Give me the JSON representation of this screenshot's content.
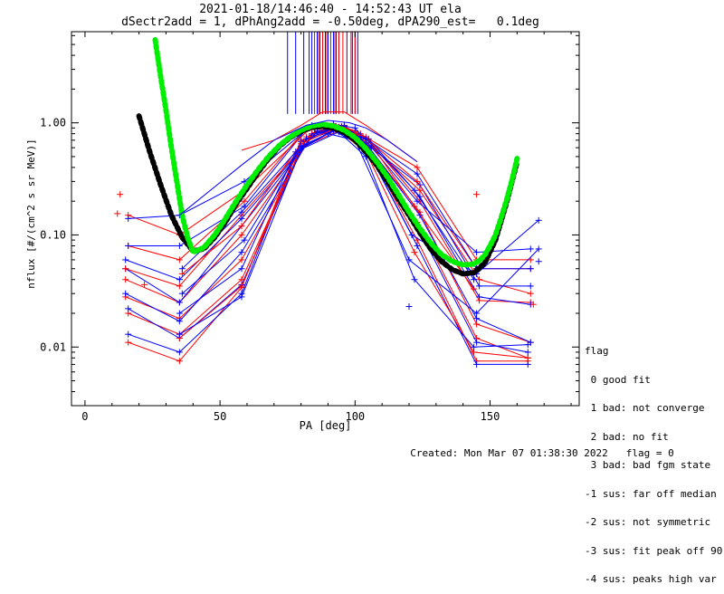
{
  "title_line1": "2021-01-18/14:46:40 - 14:52:43 UT ela",
  "title_line2": "dSectr2add = 1, dPhAng2add = -0.50deg, dPA290_est=   0.1deg",
  "legend": {
    "heading": "flag",
    "items": [
      " 0 good fit",
      " 1 bad: not converge",
      " 2 bad: no fit",
      " 3 bad: bad fgm state",
      "-1 sus: far off median",
      "-2 sus: not symmetric",
      "-3 sus: fit peak off 90",
      "-4 sus: peaks high var"
    ]
  },
  "footer": {
    "created": "Created: Mon Mar 07 01:38:30 2022",
    "flag": "flag = 0"
  },
  "colors": {
    "red": "#ff0000",
    "blue": "#0000ff",
    "green": "#00ee00",
    "black": "#000000"
  },
  "chart_data": {
    "type": "line",
    "xlabel": "PA [deg]",
    "ylabel": "nflux [#/(cm^2 s sr MeV)]",
    "xlim": [
      -5,
      183
    ],
    "ylim": [
      0.003,
      6.5
    ],
    "yscale": "log",
    "xticks": [
      0,
      50,
      100,
      150
    ],
    "yticks": [
      0.01,
      0.1,
      1.0
    ],
    "ytick_labels": [
      "0.01",
      "0.10",
      "1.00"
    ],
    "fits": [
      {
        "name": "black fit",
        "color": "black",
        "x": [
          20,
          24,
          28,
          32,
          36,
          40,
          44,
          48,
          52,
          56,
          60,
          64,
          68,
          72,
          76,
          80,
          84,
          88,
          92,
          96,
          100,
          104,
          108,
          112,
          116,
          120,
          124,
          128,
          132,
          136,
          140,
          144,
          148,
          152,
          156,
          160
        ],
        "y": [
          1.15,
          0.55,
          0.28,
          0.15,
          0.095,
          0.072,
          0.075,
          0.095,
          0.13,
          0.19,
          0.26,
          0.36,
          0.48,
          0.62,
          0.74,
          0.84,
          0.91,
          0.93,
          0.9,
          0.82,
          0.7,
          0.55,
          0.42,
          0.3,
          0.21,
          0.15,
          0.105,
          0.075,
          0.058,
          0.049,
          0.045,
          0.046,
          0.056,
          0.09,
          0.19,
          0.45
        ]
      },
      {
        "name": "green fit",
        "color": "green",
        "x": [
          26,
          28,
          30,
          32,
          34,
          36,
          38,
          40,
          44,
          48,
          52,
          56,
          60,
          64,
          68,
          72,
          76,
          80,
          84,
          88,
          92,
          96,
          100,
          104,
          108,
          112,
          116,
          120,
          124,
          128,
          132,
          136,
          140,
          144,
          146,
          148,
          150,
          152,
          154,
          156,
          158,
          160
        ],
        "y": [
          5.5,
          2.6,
          1.3,
          0.6,
          0.3,
          0.15,
          0.095,
          0.07,
          0.077,
          0.1,
          0.14,
          0.2,
          0.28,
          0.38,
          0.5,
          0.63,
          0.75,
          0.86,
          0.94,
          0.97,
          0.94,
          0.86,
          0.74,
          0.59,
          0.45,
          0.33,
          0.23,
          0.16,
          0.115,
          0.085,
          0.067,
          0.058,
          0.054,
          0.055,
          0.059,
          0.066,
          0.08,
          0.1,
          0.14,
          0.2,
          0.3,
          0.48
        ]
      },
      {
        "name": "red envelope",
        "color": "red",
        "line_only": true,
        "x": [
          58,
          70,
          80,
          88,
          96,
          104,
          112,
          123
        ],
        "y": [
          0.57,
          0.7,
          0.95,
          1.25,
          1.25,
          0.95,
          0.7,
          0.45
        ]
      },
      {
        "name": "blue envelope",
        "color": "blue",
        "line_only": true,
        "x": [
          35,
          58,
          70,
          82,
          90,
          98,
          104,
          112,
          123
        ],
        "y": [
          0.15,
          0.42,
          0.7,
          0.95,
          1.05,
          1.0,
          0.9,
          0.7,
          0.45
        ]
      }
    ],
    "traces": [
      {
        "color": "red",
        "x": [
          16,
          35,
          58,
          80,
          92,
          104,
          123,
          145,
          164
        ],
        "y": [
          0.011,
          0.0075,
          0.034,
          0.7,
          0.87,
          0.62,
          0.09,
          0.0075,
          0.0075
        ]
      },
      {
        "color": "blue",
        "x": [
          16,
          35,
          58,
          80,
          92,
          104,
          123,
          145,
          164
        ],
        "y": [
          0.013,
          0.009,
          0.03,
          0.68,
          0.85,
          0.6,
          0.08,
          0.007,
          0.007
        ]
      },
      {
        "color": "red",
        "x": [
          16,
          35,
          58,
          82,
          92,
          102,
          123,
          145,
          164
        ],
        "y": [
          0.02,
          0.013,
          0.04,
          0.75,
          0.9,
          0.7,
          0.13,
          0.012,
          0.008
        ]
      },
      {
        "color": "blue",
        "x": [
          16,
          35,
          58,
          82,
          92,
          102,
          123,
          145,
          164
        ],
        "y": [
          0.022,
          0.012,
          0.036,
          0.72,
          0.88,
          0.68,
          0.12,
          0.011,
          0.009
        ]
      },
      {
        "color": "red",
        "x": [
          15,
          35,
          58,
          84,
          94,
          104,
          124,
          145,
          165
        ],
        "y": [
          0.028,
          0.018,
          0.06,
          0.8,
          0.92,
          0.65,
          0.16,
          0.016,
          0.011
        ]
      },
      {
        "color": "blue",
        "x": [
          15,
          35,
          58,
          84,
          94,
          104,
          124,
          145,
          165
        ],
        "y": [
          0.03,
          0.017,
          0.07,
          0.78,
          0.9,
          0.66,
          0.15,
          0.018,
          0.011
        ]
      },
      {
        "color": "red",
        "x": [
          15,
          35,
          58,
          85,
          95,
          105,
          124,
          146,
          165
        ],
        "y": [
          0.04,
          0.025,
          0.1,
          0.82,
          0.93,
          0.7,
          0.2,
          0.026,
          0.025
        ]
      },
      {
        "color": "blue",
        "x": [
          15,
          35,
          58,
          85,
          95,
          105,
          124,
          146,
          165
        ],
        "y": [
          0.05,
          0.025,
          0.12,
          0.8,
          0.92,
          0.72,
          0.22,
          0.028,
          0.024
        ]
      },
      {
        "color": "red",
        "x": [
          15,
          35,
          58,
          86,
          96,
          106,
          124,
          146,
          165
        ],
        "y": [
          0.05,
          0.035,
          0.15,
          0.85,
          0.95,
          0.62,
          0.25,
          0.04,
          0.03
        ]
      },
      {
        "color": "blue",
        "x": [
          15,
          35,
          58,
          86,
          96,
          106,
          124,
          146,
          165
        ],
        "y": [
          0.06,
          0.04,
          0.14,
          0.84,
          0.94,
          0.6,
          0.28,
          0.035,
          0.035
        ]
      },
      {
        "color": "red",
        "x": [
          16,
          35,
          59,
          82,
          92,
          102,
          123,
          145,
          165
        ],
        "y": [
          0.08,
          0.06,
          0.2,
          0.9,
          0.98,
          0.8,
          0.3,
          0.05,
          0.05
        ]
      },
      {
        "color": "blue",
        "x": [
          16,
          35,
          59,
          82,
          92,
          102,
          123,
          145,
          165
        ],
        "y": [
          0.08,
          0.08,
          0.18,
          0.88,
          0.96,
          0.78,
          0.35,
          0.05,
          0.05
        ]
      },
      {
        "color": "red",
        "x": [
          16,
          35,
          59,
          84,
          92,
          100,
          123,
          145,
          165
        ],
        "y": [
          0.15,
          0.1,
          0.25,
          0.92,
          0.98,
          0.85,
          0.4,
          0.06,
          0.06
        ]
      },
      {
        "color": "blue",
        "x": [
          16,
          35,
          59,
          84,
          92,
          100,
          123,
          145,
          165
        ],
        "y": [
          0.14,
          0.15,
          0.3,
          0.95,
          0.97,
          0.9,
          0.2,
          0.07,
          0.075
        ]
      },
      {
        "color": "red",
        "x": [
          35,
          58,
          80,
          94,
          104,
          122,
          144,
          164
        ],
        "y": [
          0.012,
          0.035,
          0.6,
          0.85,
          0.55,
          0.07,
          0.009,
          0.008
        ]
      },
      {
        "color": "blue",
        "x": [
          35,
          58,
          80,
          94,
          104,
          122,
          144,
          164
        ],
        "y": [
          0.013,
          0.028,
          0.58,
          0.83,
          0.5,
          0.04,
          0.01,
          0.0105
        ]
      },
      {
        "color": "blue",
        "x": [
          35,
          58,
          78,
          90,
          100,
          120,
          145,
          168
        ],
        "y": [
          0.02,
          0.05,
          0.55,
          0.8,
          0.7,
          0.06,
          0.02,
          0.075
        ]
      },
      {
        "color": "blue",
        "x": [
          36,
          59,
          80,
          92,
          102,
          121,
          145,
          168
        ],
        "y": [
          0.03,
          0.09,
          0.6,
          0.86,
          0.75,
          0.1,
          0.045,
          0.135
        ]
      },
      {
        "color": "red",
        "x": [
          36,
          58,
          80,
          93,
          104,
          122,
          144
        ],
        "y": [
          0.045,
          0.12,
          0.65,
          0.9,
          0.75,
          0.18,
          0.033
        ]
      },
      {
        "color": "blue",
        "x": [
          36,
          58,
          80,
          93,
          104,
          122,
          144
        ],
        "y": [
          0.05,
          0.16,
          0.62,
          0.86,
          0.72,
          0.25,
          0.04
        ]
      }
    ],
    "outlier_points": [
      {
        "color": "red",
        "x": 13,
        "y": 0.23
      },
      {
        "color": "red",
        "x": 12,
        "y": 0.155
      },
      {
        "color": "red",
        "x": 22,
        "y": 0.036
      },
      {
        "color": "red",
        "x": 145,
        "y": 0.23
      },
      {
        "color": "blue",
        "x": 120,
        "y": 0.023
      },
      {
        "color": "blue",
        "x": 168,
        "y": 0.058
      },
      {
        "color": "red",
        "x": 166,
        "y": 0.024
      }
    ],
    "vertical_lines": [
      {
        "color": "blue",
        "x": [
          75,
          78,
          81,
          83,
          84,
          86,
          87,
          88,
          89,
          90,
          92,
          93,
          94,
          97,
          99,
          100,
          101
        ],
        "y_from": 1.2,
        "y_to": 6.5
      },
      {
        "color": "red",
        "x": [
          85,
          86.5,
          88,
          89.5,
          91,
          92.5,
          94,
          95.5,
          97,
          98.5,
          100
        ],
        "y_from": 1.2,
        "y_to": 6.5
      }
    ]
  }
}
